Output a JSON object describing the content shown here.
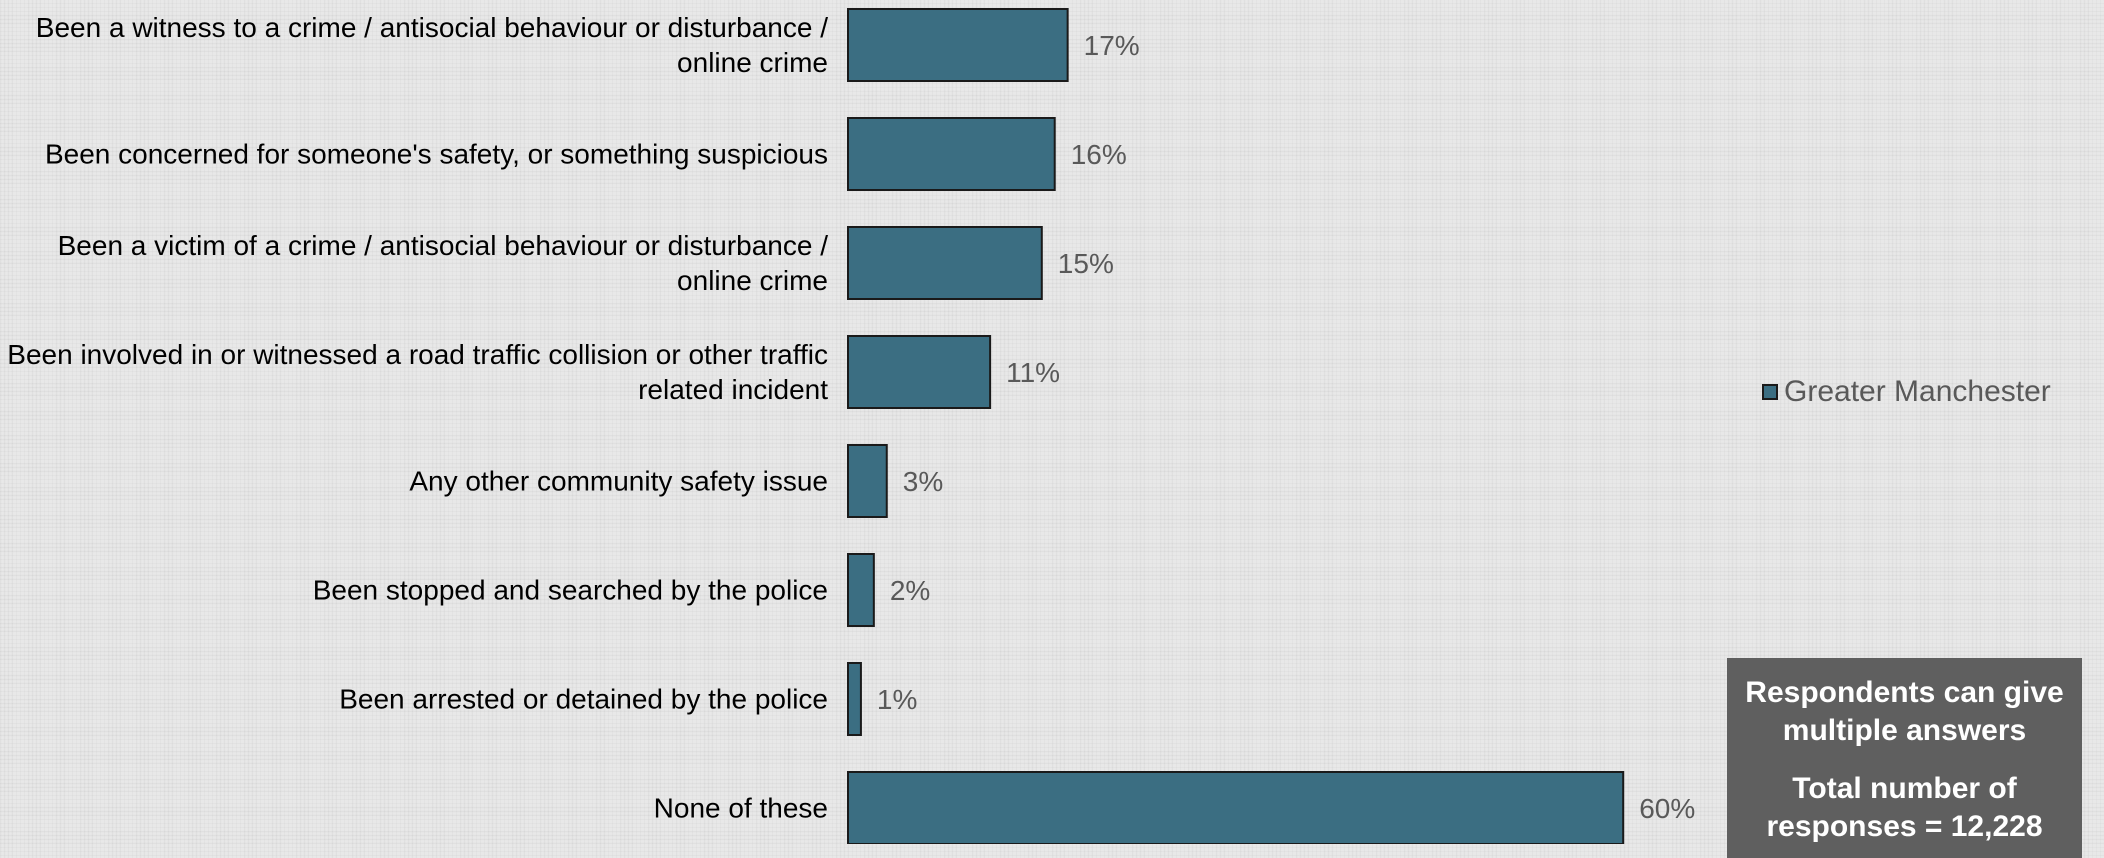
{
  "chart_data": {
    "type": "bar",
    "orientation": "horizontal",
    "categories": [
      "Been a witness to a crime / antisocial behaviour or disturbance / online crime",
      "Been concerned for someone's safety, or something suspicious",
      "Been a victim of a crime / antisocial behaviour or disturbance / online crime",
      "Been involved in or witnessed a road traffic collision or other traffic related incident",
      "Any other community safety issue",
      "Been stopped and searched by the police",
      "Been arrested or detained by the police",
      "None of these"
    ],
    "series": [
      {
        "name": "Greater Manchester",
        "values": [
          17,
          16,
          15,
          11,
          3,
          2,
          1,
          60
        ],
        "labels": [
          "17%",
          "16%",
          "15%",
          "11%",
          "3%",
          "2%",
          "1%",
          "60%"
        ]
      }
    ],
    "xlim": [
      0,
      60
    ],
    "grid": false,
    "legend_position": "right",
    "bar_color": "#3b6e82",
    "bar_edge_color": "#1a1a1a",
    "label_color": "#595959"
  },
  "legend": {
    "label": "Greater Manchester"
  },
  "note": {
    "line1": "Respondents can give multiple answers",
    "line2": "Total number of responses = 12,228"
  }
}
